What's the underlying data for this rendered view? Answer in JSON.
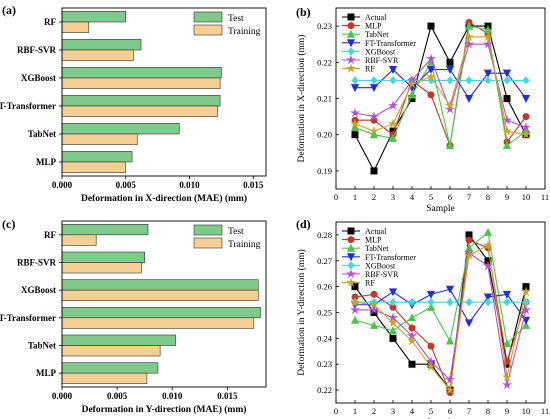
{
  "colors": {
    "test": "#7fc98b",
    "training": "#f5cf94",
    "bar_edge": "#333333",
    "Actual": "#000000",
    "MLP": "#c0392b",
    "TabNet": "#4cc44c",
    "FT-Transformer": "#1f2fd6",
    "XGBoost": "#45d6e0",
    "RBF-SVR": "#b24fd6",
    "RF": "#c9a227"
  },
  "chart_data": [
    {
      "panel": "(a)",
      "type": "bar",
      "orientation": "horizontal",
      "categories": [
        "RF",
        "RBF-SVR",
        "XGBoost",
        "FT-Transformer",
        "TabNet",
        "MLP"
      ],
      "series": [
        {
          "name": "Test",
          "values": [
            0.005,
            0.0062,
            0.0125,
            0.0124,
            0.0092,
            0.0055
          ]
        },
        {
          "name": "Training",
          "values": [
            0.0021,
            0.0056,
            0.0124,
            0.0122,
            0.0059,
            0.005
          ]
        }
      ],
      "xlabel": "Deformation in X-direction (MAE) (mm)",
      "xlim": [
        0,
        0.016
      ],
      "xticks": [
        0,
        0.005,
        0.01,
        0.015
      ],
      "xtick_labels": [
        "0.000",
        "0.005",
        "0.010",
        "0.015"
      ],
      "legend": "top-right"
    },
    {
      "panel": "(b)",
      "type": "line",
      "x": [
        1,
        2,
        3,
        4,
        5,
        6,
        7,
        8,
        9,
        10
      ],
      "series": [
        {
          "name": "Actual",
          "marker": "square",
          "values": [
            0.2,
            0.19,
            0.201,
            0.21,
            0.23,
            0.22,
            0.23,
            0.23,
            0.21,
            0.2
          ]
        },
        {
          "name": "MLP",
          "marker": "circle",
          "values": [
            0.204,
            0.204,
            0.2,
            0.215,
            0.211,
            0.197,
            0.231,
            0.228,
            0.198,
            0.205
          ]
        },
        {
          "name": "TabNet",
          "marker": "triangle-up",
          "values": [
            0.202,
            0.2,
            0.199,
            0.211,
            0.22,
            0.197,
            0.23,
            0.229,
            0.197,
            0.201
          ]
        },
        {
          "name": "FT-Transformer",
          "marker": "triangle-down",
          "values": [
            0.213,
            0.213,
            0.218,
            0.213,
            0.218,
            0.218,
            0.21,
            0.217,
            0.217,
            0.21
          ]
        },
        {
          "name": "XGBoost",
          "marker": "diamond",
          "values": [
            0.215,
            0.215,
            0.215,
            0.215,
            0.215,
            0.215,
            0.215,
            0.215,
            0.215,
            0.215
          ]
        },
        {
          "name": "RBF-SVR",
          "marker": "star",
          "values": [
            0.206,
            0.205,
            0.208,
            0.215,
            0.221,
            0.207,
            0.225,
            0.225,
            0.204,
            0.202
          ]
        },
        {
          "name": "RF",
          "marker": "star",
          "values": [
            0.203,
            0.201,
            0.203,
            0.214,
            0.216,
            0.208,
            0.227,
            0.227,
            0.201,
            0.2
          ]
        }
      ],
      "xlabel": "Sample",
      "ylabel": "Deformation in X-direction (mm)",
      "xlim": [
        0,
        11
      ],
      "ylim": [
        0.185,
        0.235
      ],
      "xticks": [
        0,
        1,
        2,
        3,
        4,
        5,
        6,
        7,
        8,
        9,
        10,
        11
      ],
      "yticks": [
        0.19,
        0.2,
        0.21,
        0.22,
        0.23
      ],
      "ytick_labels": [
        "0.19",
        "0.20",
        "0.21",
        "0.22",
        "0.23"
      ],
      "legend": "top-left"
    },
    {
      "panel": "(c)",
      "type": "bar",
      "orientation": "horizontal",
      "categories": [
        "RF",
        "RBF-SVR",
        "XGBoost",
        "FT-Transformer",
        "TabNet",
        "MLP"
      ],
      "series": [
        {
          "name": "Test",
          "values": [
            0.0078,
            0.0075,
            0.0178,
            0.018,
            0.0103,
            0.0087
          ]
        },
        {
          "name": "Training",
          "values": [
            0.0031,
            0.0072,
            0.0178,
            0.0174,
            0.0089,
            0.0077
          ]
        }
      ],
      "xlabel": "Deformation in Y-direction (MAE) (mm)",
      "xlim": [
        0,
        0.0185
      ],
      "xticks": [
        0,
        0.005,
        0.01,
        0.015
      ],
      "xtick_labels": [
        "0.000",
        "0.005",
        "0.010",
        "0.015"
      ],
      "legend": "top-right"
    },
    {
      "panel": "(d)",
      "type": "line",
      "x": [
        1,
        2,
        3,
        4,
        5,
        6,
        7,
        8,
        9,
        10
      ],
      "series": [
        {
          "name": "Actual",
          "marker": "square",
          "values": [
            0.26,
            0.25,
            0.24,
            0.23,
            0.23,
            0.22,
            0.28,
            0.27,
            0.23,
            0.26
          ]
        },
        {
          "name": "MLP",
          "marker": "circle",
          "values": [
            0.256,
            0.257,
            0.252,
            0.244,
            0.237,
            0.219,
            0.278,
            0.275,
            0.231,
            0.254
          ]
        },
        {
          "name": "TabNet",
          "marker": "triangle-up",
          "values": [
            0.247,
            0.245,
            0.243,
            0.248,
            0.252,
            0.239,
            0.275,
            0.281,
            0.238,
            0.245
          ]
        },
        {
          "name": "FT-Transformer",
          "marker": "triangle-down",
          "values": [
            0.253,
            0.253,
            0.258,
            0.253,
            0.257,
            0.259,
            0.246,
            0.256,
            0.257,
            0.247
          ]
        },
        {
          "name": "XGBoost",
          "marker": "diamond",
          "values": [
            0.254,
            0.254,
            0.254,
            0.254,
            0.254,
            0.254,
            0.254,
            0.254,
            0.254,
            0.254
          ]
        },
        {
          "name": "RBF-SVR",
          "marker": "star",
          "values": [
            0.251,
            0.251,
            0.248,
            0.241,
            0.231,
            0.224,
            0.273,
            0.268,
            0.222,
            0.251
          ]
        },
        {
          "name": "RF",
          "marker": "star",
          "values": [
            0.254,
            0.253,
            0.246,
            0.239,
            0.229,
            0.22,
            0.272,
            0.276,
            0.225,
            0.258
          ]
        }
      ],
      "xlabel": "Sample",
      "ylabel": "Deformation in Y-direction (mm)",
      "xlim": [
        0,
        11
      ],
      "ylim": [
        0.215,
        0.285
      ],
      "xticks": [
        0,
        1,
        2,
        3,
        4,
        5,
        6,
        7,
        8,
        9,
        10,
        11
      ],
      "yticks": [
        0.22,
        0.23,
        0.24,
        0.25,
        0.26,
        0.27,
        0.28
      ],
      "ytick_labels": [
        "0.22",
        "0.23",
        "0.24",
        "0.25",
        "0.26",
        "0.27",
        "0.28"
      ],
      "legend": "top-left"
    }
  ]
}
